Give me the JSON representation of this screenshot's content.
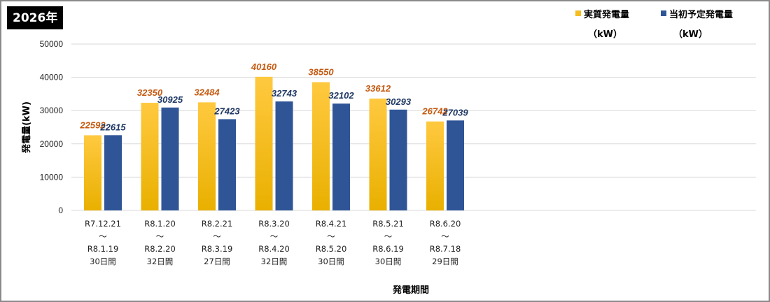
{
  "badge": {
    "year": "2026年"
  },
  "legend": {
    "actual": {
      "name": "実質発電量",
      "unit": "（kW）"
    },
    "plan": {
      "name": "当初予定発電量",
      "unit": "（kW）"
    }
  },
  "colors": {
    "actual_top": "#FFC940",
    "actual_bottom": "#E9B000",
    "plan": "#2F5597",
    "actual_label": "#C55A11",
    "plan_label": "#1F3864",
    "grid": "#D9D9D9"
  },
  "chart_data": {
    "type": "bar",
    "xlabel": "発電期間",
    "ylabel": "発電量(kW)",
    "ylim": [
      0,
      50000
    ],
    "yticks": [
      "0",
      "10000",
      "20000",
      "30000",
      "40000",
      "50000"
    ],
    "grid": true,
    "legend_position": "top-right",
    "categories": [
      [
        "R7.12.21",
        "～",
        "R8.1.19",
        "30日間"
      ],
      [
        "R8.1.20",
        "～",
        "R8.2.20",
        "32日間"
      ],
      [
        "R8.2.21",
        "～",
        "R8.3.19",
        "27日間"
      ],
      [
        "R8.3.20",
        "～",
        "R8.4.20",
        "32日間"
      ],
      [
        "R8.4.21",
        "～",
        "R8.5.20",
        "30日間"
      ],
      [
        "R8.5.21",
        "～",
        "R8.6.19",
        "30日間"
      ],
      [
        "R8.6.20",
        "～",
        "R8.7.18",
        "29日間"
      ]
    ],
    "series": [
      {
        "name": "実質発電量",
        "values": [
          22592,
          32350,
          32484,
          40160,
          38550,
          33612,
          26742
        ]
      },
      {
        "name": "当初予定発電量",
        "values": [
          22615,
          30925,
          27423,
          32743,
          32102,
          30293,
          27039
        ]
      }
    ]
  }
}
